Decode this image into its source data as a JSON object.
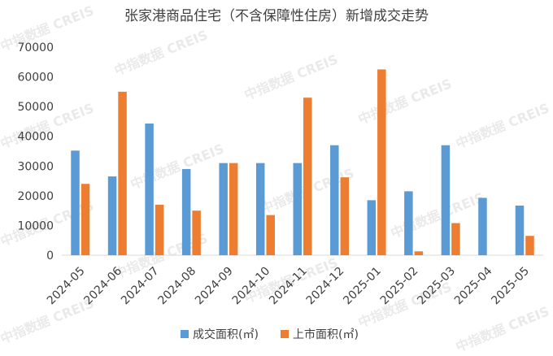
{
  "chart_data": {
    "type": "bar",
    "title": "张家港商品住宅（不含保障性住房）新增成交走势",
    "watermark": "中指数据 CREIS",
    "categories": [
      "2024-05",
      "2024-06",
      "2024-07",
      "2024-08",
      "2024-09",
      "2024-10",
      "2024-11",
      "2024-12",
      "2025-01",
      "2025-02",
      "2025-03",
      "2025-04",
      "2025-05"
    ],
    "series": [
      {
        "name": "成交面积(㎡)",
        "color": "#5b9bd5",
        "values": [
          35200,
          26500,
          44300,
          29000,
          31000,
          31000,
          31000,
          37000,
          18500,
          21500,
          37000,
          19300,
          16700
        ]
      },
      {
        "name": "上市面积(㎡)",
        "color": "#ed7d31",
        "values": [
          24000,
          55000,
          17000,
          15000,
          31000,
          13500,
          53000,
          26200,
          62500,
          1300,
          10800,
          0,
          6500
        ]
      }
    ],
    "ylim": [
      0,
      70000
    ],
    "yticks": [
      0,
      10000,
      20000,
      30000,
      40000,
      50000,
      60000,
      70000
    ],
    "grid": false,
    "legend_position": "bottom",
    "xlabel": "",
    "ylabel": ""
  }
}
